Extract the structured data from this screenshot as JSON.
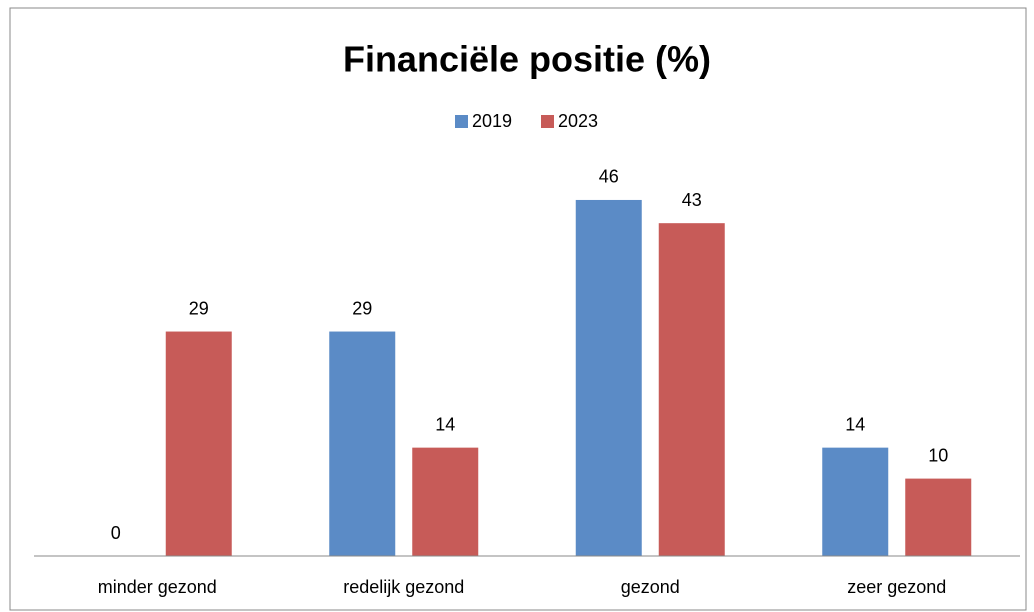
{
  "chart_data": {
    "type": "bar",
    "title": "Financiële positie (%)",
    "categories": [
      "minder gezond",
      "redelijk gezond",
      "gezond",
      "zeer gezond"
    ],
    "series": [
      {
        "name": "2019",
        "color": "#5b8bc6",
        "values": [
          0,
          29,
          46,
          14
        ]
      },
      {
        "name": "2023",
        "color": "#c75b58",
        "values": [
          29,
          14,
          43,
          10
        ]
      }
    ],
    "legend": "top"
  }
}
